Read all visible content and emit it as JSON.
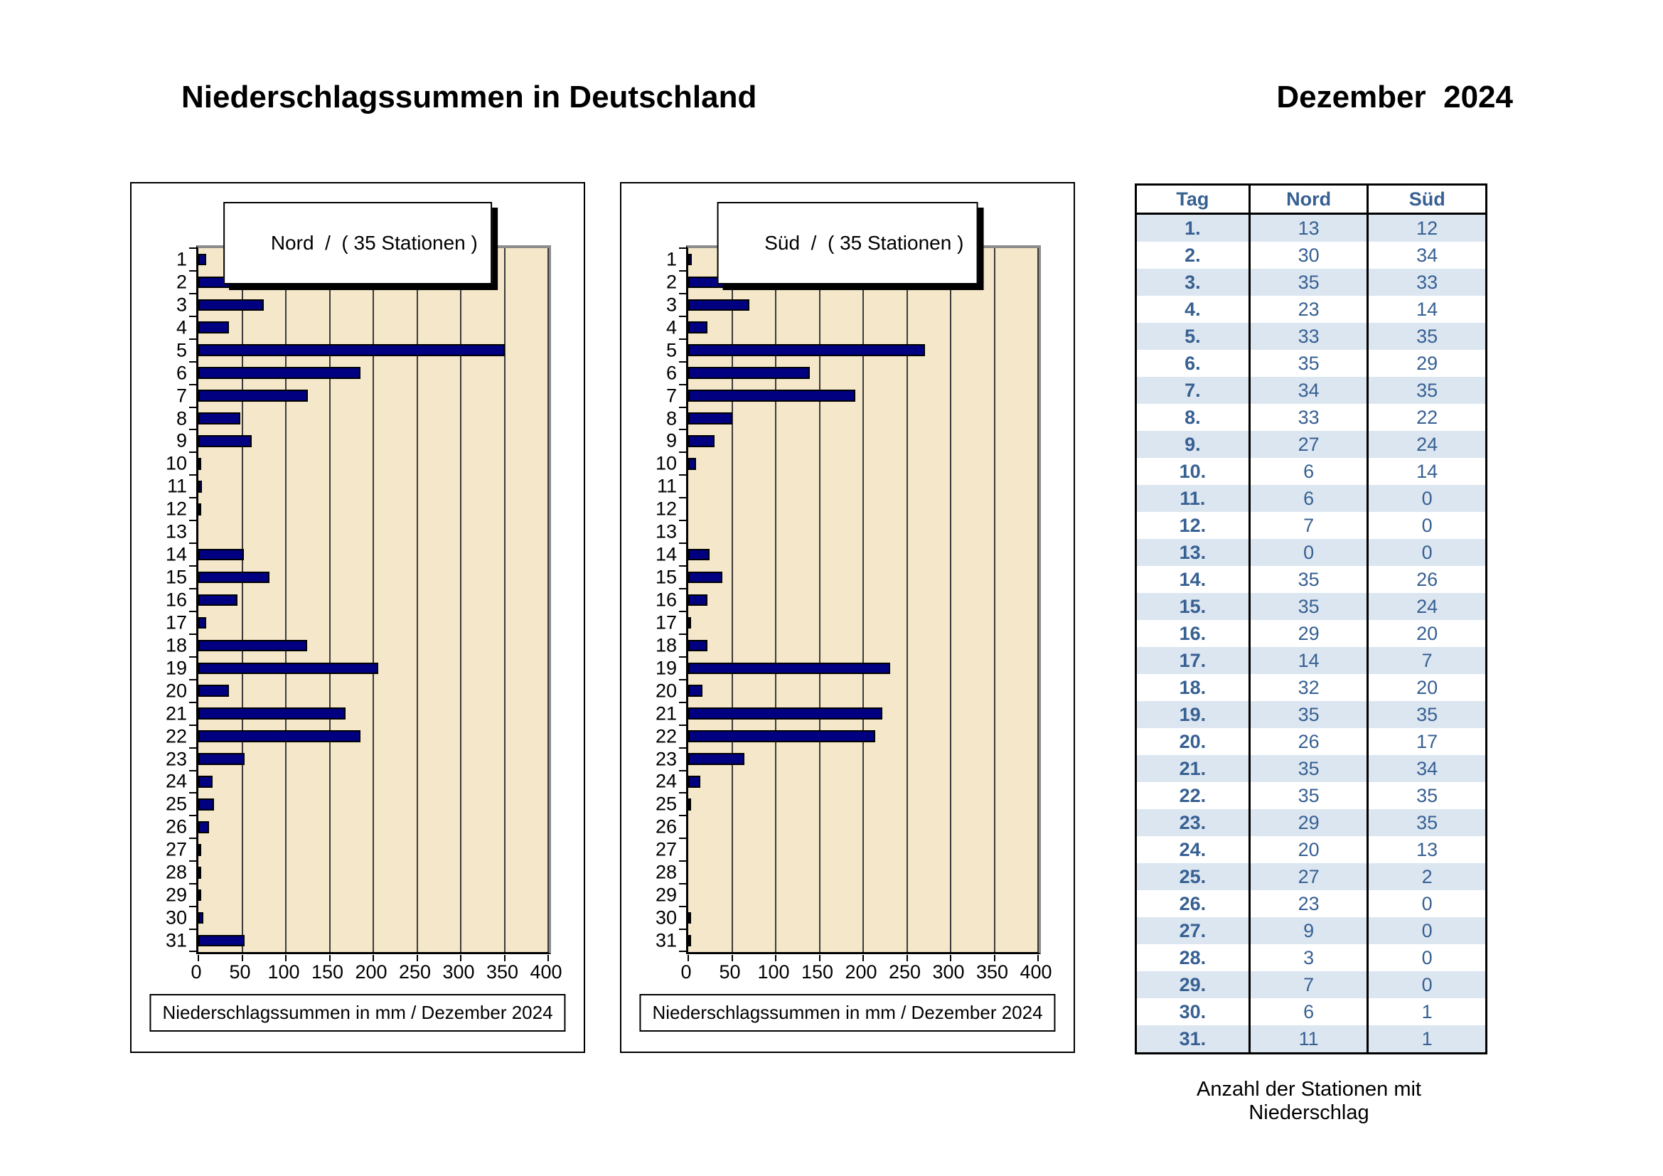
{
  "page": {
    "title": "Niederschlagssummen in Deutschland",
    "period": "Dezember  2024"
  },
  "colors": {
    "bar": "#000080",
    "plot_background": "#F4E7CA",
    "table_stripe": "#DCE6F1",
    "table_text": "#376092"
  },
  "chart_data": [
    {
      "type": "bar",
      "orientation": "horizontal",
      "title": "Nord  /  ( 35 Stationen )",
      "xlabel": "Niederschlagssummen in mm / Dezember 2024",
      "xlim": [
        0,
        400
      ],
      "xticks": [
        0,
        50,
        100,
        150,
        200,
        250,
        300,
        350,
        400
      ],
      "grid": true,
      "legend": false,
      "bar_color": "#000080",
      "plot_bg": "#F4E7CA",
      "categories": [
        1,
        2,
        3,
        4,
        5,
        6,
        7,
        8,
        9,
        10,
        11,
        12,
        13,
        14,
        15,
        16,
        17,
        18,
        19,
        20,
        21,
        22,
        23,
        24,
        25,
        26,
        27,
        28,
        29,
        30,
        31
      ],
      "values": [
        9,
        81,
        75,
        35,
        350,
        185,
        125,
        48,
        61,
        2,
        4,
        2,
        0,
        52,
        81,
        45,
        9,
        124,
        206,
        35,
        168,
        185,
        53,
        16,
        18,
        12,
        3,
        2,
        3,
        6,
        53
      ]
    },
    {
      "type": "bar",
      "orientation": "horizontal",
      "title": "Süd  /  ( 35 Stationen )",
      "xlabel": "Niederschlagssummen in mm / Dezember 2024",
      "xlim": [
        0,
        400
      ],
      "xticks": [
        0,
        50,
        100,
        150,
        200,
        250,
        300,
        350,
        400
      ],
      "grid": true,
      "legend": false,
      "bar_color": "#000080",
      "plot_bg": "#F4E7CA",
      "categories": [
        1,
        2,
        3,
        4,
        5,
        6,
        7,
        8,
        9,
        10,
        11,
        12,
        13,
        14,
        15,
        16,
        17,
        18,
        19,
        20,
        21,
        22,
        23,
        24,
        25,
        26,
        27,
        28,
        29,
        30,
        31
      ],
      "values": [
        4,
        153,
        70,
        22,
        271,
        139,
        191,
        50,
        30,
        9,
        0,
        0,
        0,
        24,
        39,
        22,
        2,
        22,
        231,
        16,
        222,
        214,
        64,
        14,
        2,
        0,
        0,
        0,
        0,
        1,
        1
      ]
    },
    {
      "type": "table",
      "columns": [
        "Tag",
        "Nord",
        "Süd"
      ],
      "caption": "Anzahl der Stationen mit Niederschlag",
      "rows": [
        [
          "1.",
          13,
          12
        ],
        [
          "2.",
          30,
          34
        ],
        [
          "3.",
          35,
          33
        ],
        [
          "4.",
          23,
          14
        ],
        [
          "5.",
          33,
          35
        ],
        [
          "6.",
          35,
          29
        ],
        [
          "7.",
          34,
          35
        ],
        [
          "8.",
          33,
          22
        ],
        [
          "9.",
          27,
          24
        ],
        [
          "10.",
          6,
          14
        ],
        [
          "11.",
          6,
          0
        ],
        [
          "12.",
          7,
          0
        ],
        [
          "13.",
          0,
          0
        ],
        [
          "14.",
          35,
          26
        ],
        [
          "15.",
          35,
          24
        ],
        [
          "16.",
          29,
          20
        ],
        [
          "17.",
          14,
          7
        ],
        [
          "18.",
          32,
          20
        ],
        [
          "19.",
          35,
          35
        ],
        [
          "20.",
          26,
          17
        ],
        [
          "21.",
          35,
          34
        ],
        [
          "22.",
          35,
          35
        ],
        [
          "23.",
          29,
          35
        ],
        [
          "24.",
          20,
          13
        ],
        [
          "25.",
          27,
          2
        ],
        [
          "26.",
          23,
          0
        ],
        [
          "27.",
          9,
          0
        ],
        [
          "28.",
          3,
          0
        ],
        [
          "29.",
          7,
          0
        ],
        [
          "30.",
          6,
          1
        ],
        [
          "31.",
          11,
          1
        ]
      ]
    }
  ]
}
